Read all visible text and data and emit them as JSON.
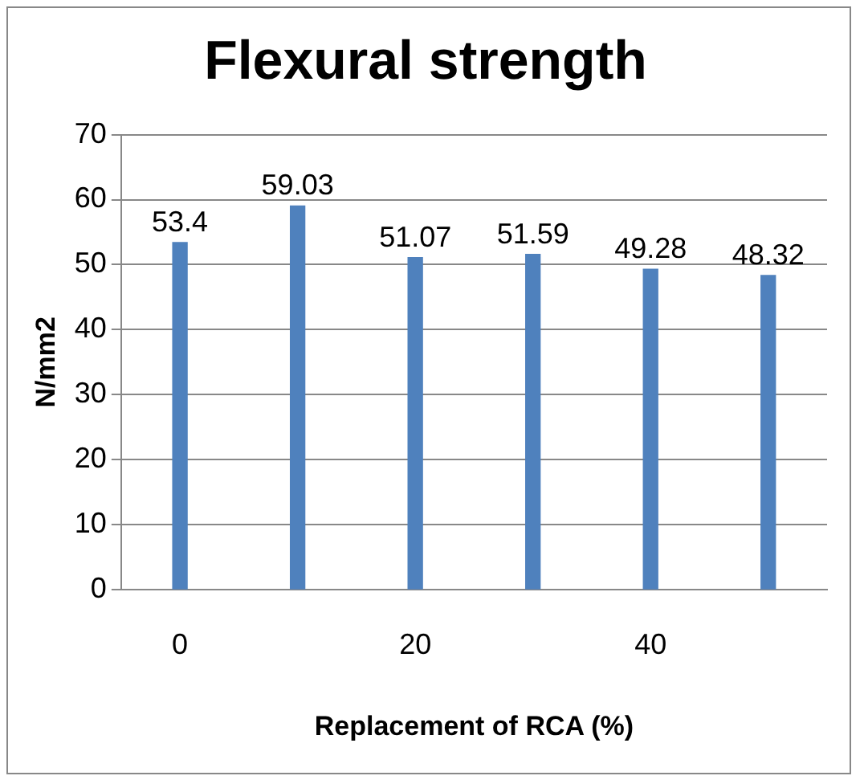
{
  "chart_data": {
    "type": "bar",
    "title": "Flexural strength",
    "xlabel": "Replacement of RCA (%)",
    "ylabel": "N/mm2",
    "categories": [
      "0",
      null,
      "20",
      null,
      "40",
      null
    ],
    "values": [
      53.4,
      59.03,
      51.07,
      51.59,
      49.28,
      48.32
    ],
    "color": "#4f81bd",
    "ylim": [
      0,
      70
    ],
    "yticks": [
      0,
      10,
      20,
      30,
      40,
      50,
      60,
      70
    ],
    "grid": "y",
    "data_labels": true
  }
}
